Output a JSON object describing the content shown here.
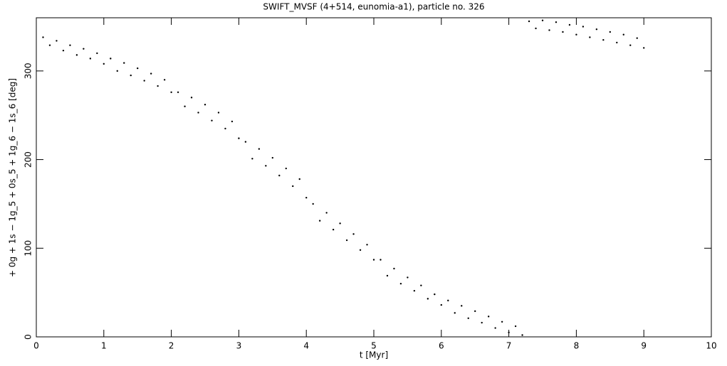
{
  "chart_data": {
    "type": "scatter",
    "title": "SWIFT_MVSF (4+514, eunomia-a1), particle no. 326",
    "x_label": "t [Myr]",
    "y_label": "+ 0g + 1s − 1g_5 + 0s_5 + 1g_6 − 1s_6 [deg]",
    "xlim": [
      0,
      10
    ],
    "ylim": [
      0,
      360
    ],
    "xticks": [
      0,
      1,
      2,
      3,
      4,
      5,
      6,
      7,
      8,
      9,
      10
    ],
    "yticks": [
      0,
      100,
      200,
      300
    ],
    "series": [
      {
        "color": "#000000",
        "x": [
          0.1,
          0.2,
          0.3,
          0.4,
          0.5,
          0.6,
          0.7,
          0.8,
          0.9,
          1.0,
          1.1,
          1.2,
          1.3,
          1.4,
          1.5,
          1.6,
          1.7,
          1.8,
          1.9,
          2.0,
          2.1,
          2.2,
          2.3,
          2.4,
          2.5,
          2.6,
          2.7,
          2.8,
          2.9,
          3.0,
          3.1,
          3.2,
          3.3,
          3.4,
          3.5,
          3.6,
          3.7,
          3.8,
          3.9,
          4.0,
          4.1,
          4.2,
          4.3,
          4.4,
          4.5,
          4.6,
          4.7,
          4.8,
          4.9,
          5.0,
          5.1,
          5.2,
          5.3,
          5.4,
          5.5,
          5.6,
          5.7,
          5.8,
          5.9,
          6.0,
          6.1,
          6.2,
          6.3,
          6.4,
          6.5,
          6.6,
          6.7,
          6.8,
          6.9,
          7.0,
          7.1,
          7.2,
          7.3,
          7.4,
          7.5,
          7.6,
          7.7,
          7.8,
          7.9,
          8.0,
          8.1,
          8.2,
          8.3,
          8.4,
          8.5,
          8.6,
          8.7,
          8.8,
          8.9,
          9.0
        ],
        "values": [
          338,
          329,
          334,
          323,
          329,
          318,
          325,
          314,
          320,
          308,
          314,
          300,
          309,
          295,
          303,
          289,
          297,
          283,
          290,
          276,
          276,
          260,
          270,
          253,
          262,
          244,
          253,
          235,
          243,
          224,
          220,
          201,
          212,
          193,
          202,
          182,
          190,
          170,
          178,
          157,
          150,
          131,
          140,
          121,
          128,
          109,
          116,
          98,
          104,
          87,
          87,
          69,
          77,
          60,
          67,
          52,
          58,
          43,
          48,
          36,
          41,
          27,
          35,
          21,
          29,
          16,
          23,
          10,
          17,
          5,
          12,
          2,
          356,
          348,
          357,
          346,
          355,
          344,
          352,
          341,
          350,
          338,
          347,
          335,
          344,
          332,
          341,
          329,
          337,
          326
        ]
      }
    ]
  }
}
